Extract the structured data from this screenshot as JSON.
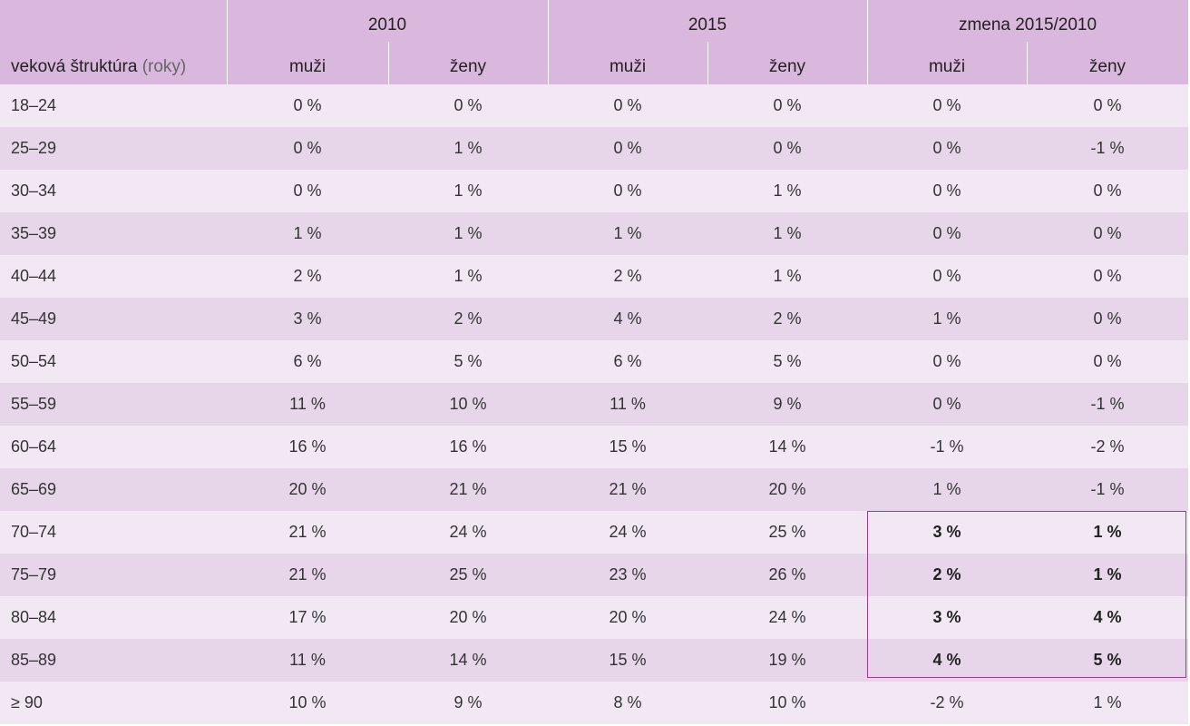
{
  "header": {
    "row_label": "veková štruktúra",
    "row_label_unit": "(roky)",
    "groups": [
      "2010",
      "2015",
      "zmena 2015/2010"
    ],
    "subcols": [
      "muži",
      "ženy",
      "muži",
      "ženy",
      "muži",
      "ženy"
    ]
  },
  "rows": [
    {
      "age": "18–24",
      "values": [
        "0 %",
        "0 %",
        "0 %",
        "0 %",
        "0 %",
        "0 %"
      ]
    },
    {
      "age": "25–29",
      "values": [
        "0 %",
        "1 %",
        "0 %",
        "0 %",
        "0 %",
        "-1 %"
      ]
    },
    {
      "age": "30–34",
      "values": [
        "0 %",
        "1 %",
        "0 %",
        "1 %",
        "0 %",
        "0 %"
      ]
    },
    {
      "age": "35–39",
      "values": [
        "1 %",
        "1 %",
        "1 %",
        "1 %",
        "0 %",
        "0 %"
      ]
    },
    {
      "age": "40–44",
      "values": [
        "2 %",
        "1 %",
        "2 %",
        "1 %",
        "0 %",
        "0 %"
      ]
    },
    {
      "age": "45–49",
      "values": [
        "3 %",
        "2 %",
        "4 %",
        "2 %",
        "1 %",
        "0 %"
      ]
    },
    {
      "age": "50–54",
      "values": [
        "6 %",
        "5 %",
        "6 %",
        "5 %",
        "0 %",
        "0 %"
      ]
    },
    {
      "age": "55–59",
      "values": [
        "11 %",
        "10 %",
        "11 %",
        "9 %",
        "0 %",
        "-1 %"
      ]
    },
    {
      "age": "60–64",
      "values": [
        "16 %",
        "16 %",
        "15 %",
        "14 %",
        "-1 %",
        "-2 %"
      ]
    },
    {
      "age": "65–69",
      "values": [
        "20 %",
        "21 %",
        "21 %",
        "20 %",
        "1 %",
        "-1 %"
      ]
    },
    {
      "age": "70–74",
      "values": [
        "21 %",
        "24 %",
        "24 %",
        "25 %",
        "3 %",
        "1 %"
      ]
    },
    {
      "age": "75–79",
      "values": [
        "21 %",
        "25 %",
        "23 %",
        "26 %",
        "2 %",
        "1 %"
      ]
    },
    {
      "age": "80–84",
      "values": [
        "17 %",
        "20 %",
        "20 %",
        "24 %",
        "3 %",
        "4 %"
      ]
    },
    {
      "age": "85–89",
      "values": [
        "11 %",
        "14 %",
        "15 %",
        "19 %",
        "4 %",
        "5 %"
      ]
    },
    {
      "age": "≥ 90",
      "values": [
        "10 %",
        "9 %",
        "8 %",
        "10 %",
        "-2 %",
        "1 %"
      ]
    }
  ],
  "highlight_rows": [
    "70–74",
    "75–79",
    "80–84",
    "85–89"
  ],
  "colors": {
    "header": "#dab7dc",
    "row_light": "#f2e8f4",
    "row_dark": "#e7d6ea",
    "highlight_border": "#9a3f8e"
  }
}
